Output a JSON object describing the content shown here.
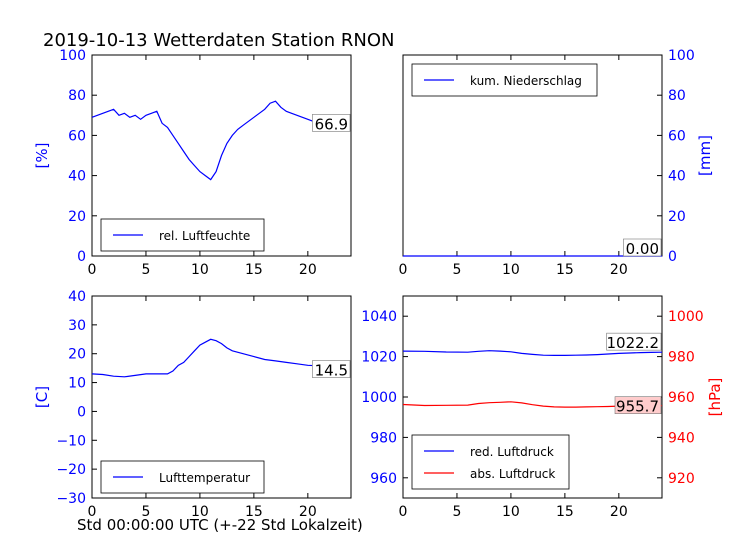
{
  "figure": {
    "title": "2019-10-13 Wetterdaten Station RNON",
    "xlabel": "Std 00:00:00 UTC (+-22 Std Lokalzeit)"
  },
  "colors": {
    "blue": "#0000ff",
    "red": "#ff0000",
    "label_box": "#ffffff",
    "label_box_red": "#ffcccc"
  },
  "chart_data": [
    {
      "type": "line",
      "panel": "top-left",
      "xlim": [
        0,
        24
      ],
      "ylim": [
        0,
        100
      ],
      "xticks": [
        "0",
        "5",
        "10",
        "15",
        "20"
      ],
      "yticks": [
        "0",
        "20",
        "40",
        "60",
        "80",
        "100"
      ],
      "ylabel": "[%]",
      "y_axis_side": "left",
      "legend": "lower-left",
      "series": [
        {
          "name": "rel. Luftfeuchte",
          "color": "#0000ff",
          "x": [
            0,
            0.5,
            1,
            1.5,
            2,
            2.5,
            3,
            3.5,
            4,
            4.5,
            5,
            5.5,
            6,
            6.5,
            7,
            7.5,
            8,
            8.5,
            9,
            9.5,
            10,
            10.5,
            11,
            11.5,
            12,
            12.5,
            13,
            13.5,
            14,
            14.5,
            15,
            15.5,
            16,
            16.5,
            17,
            17.5,
            18,
            18.5,
            19,
            19.5,
            20,
            20.5,
            21,
            21.5,
            22,
            22.5,
            23,
            23.5
          ],
          "y": [
            69,
            70,
            71,
            72,
            73,
            70,
            71,
            69,
            70,
            68,
            70,
            71,
            72,
            66,
            64,
            60,
            56,
            52,
            48,
            45,
            42,
            40,
            38,
            42,
            50,
            56,
            60,
            63,
            65,
            67,
            69,
            71,
            73,
            76,
            77,
            74,
            72,
            71,
            70,
            69,
            68,
            67,
            68,
            69,
            67,
            66,
            67,
            66
          ]
        }
      ],
      "last_value_label": "66.9"
    },
    {
      "type": "line",
      "panel": "top-right",
      "xlim": [
        0,
        24
      ],
      "ylim": [
        0,
        100
      ],
      "xticks": [
        "0",
        "5",
        "10",
        "15",
        "20"
      ],
      "yticks": [
        "0",
        "20",
        "40",
        "60",
        "80",
        "100"
      ],
      "ylabel": "[mm]",
      "y_axis_side": "right",
      "legend": "upper-left",
      "series": [
        {
          "name": "kum. Niederschlag",
          "color": "#0000ff",
          "x": [
            0,
            24
          ],
          "y": [
            0,
            0
          ]
        }
      ],
      "last_value_label": "0.00"
    },
    {
      "type": "line",
      "panel": "bottom-left",
      "xlim": [
        0,
        24
      ],
      "ylim": [
        -30,
        40
      ],
      "xticks": [
        "0",
        "5",
        "10",
        "15",
        "20"
      ],
      "yticks": [
        "−30",
        "−20",
        "−10",
        "0",
        "10",
        "20",
        "30",
        "40"
      ],
      "ylabel": "[C]",
      "y_axis_side": "left",
      "legend": "lower-left",
      "series": [
        {
          "name": "Lufttemperatur",
          "color": "#0000ff",
          "x": [
            0,
            1,
            2,
            3,
            4,
            5,
            6,
            7,
            7.5,
            8,
            8.5,
            9,
            9.5,
            10,
            10.5,
            11,
            11.5,
            12,
            12.5,
            13,
            14,
            15,
            16,
            17,
            18,
            19,
            20,
            21,
            22,
            23,
            23.5
          ],
          "y": [
            13,
            12.8,
            12.2,
            12,
            12.5,
            13,
            13,
            13,
            14,
            16,
            17,
            19,
            21,
            23,
            24,
            25,
            24.5,
            23.5,
            22,
            21,
            20,
            19,
            18,
            17.5,
            17,
            16.5,
            16,
            15.8,
            15.5,
            15,
            14.5
          ]
        }
      ],
      "last_value_label": "14.5"
    },
    {
      "type": "line",
      "panel": "bottom-right",
      "xlim": [
        0,
        24
      ],
      "ylim_left": [
        950,
        1050
      ],
      "ylim_right": [
        910,
        1010
      ],
      "xticks": [
        "0",
        "5",
        "10",
        "15",
        "20"
      ],
      "yticks_left": [
        "960",
        "980",
        "1000",
        "1020",
        "1040"
      ],
      "yticks_right": [
        "920",
        "940",
        "960",
        "980",
        "1000"
      ],
      "ylabel_right": "[hPa]",
      "legend": "lower-left",
      "series": [
        {
          "name": "red. Luftdruck",
          "color": "#0000ff",
          "axis": "left",
          "x": [
            0,
            2,
            4,
            6,
            7,
            8,
            9,
            10,
            11,
            12,
            13,
            14,
            15,
            16,
            17,
            18,
            19,
            20,
            21,
            22,
            23,
            24
          ],
          "y": [
            1022.7,
            1022.6,
            1022.3,
            1022.2,
            1022.6,
            1022.9,
            1022.7,
            1022.4,
            1021.6,
            1021.1,
            1020.7,
            1020.6,
            1020.6,
            1020.7,
            1020.8,
            1021.0,
            1021.3,
            1021.6,
            1021.8,
            1022.0,
            1022.1,
            1022.2
          ]
        },
        {
          "name": "abs. Luftdruck",
          "color": "#ff0000",
          "axis": "right",
          "x": [
            0,
            2,
            4,
            6,
            7,
            8,
            9,
            10,
            11,
            12,
            13,
            14,
            15,
            16,
            17,
            18,
            19,
            20,
            21,
            22,
            23,
            24
          ],
          "y": [
            956.3,
            955.8,
            955.9,
            956.0,
            956.8,
            957.2,
            957.4,
            957.6,
            957.1,
            956.2,
            955.5,
            955.1,
            955.0,
            955.0,
            955.1,
            955.2,
            955.3,
            955.5,
            955.6,
            955.7,
            955.7,
            955.7
          ]
        }
      ],
      "last_value_labels": [
        "1022.2",
        "955.7"
      ]
    }
  ]
}
